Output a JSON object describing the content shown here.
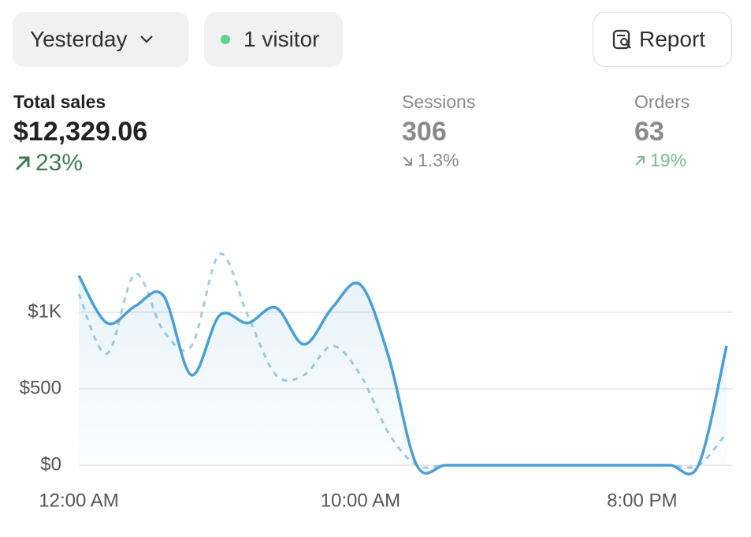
{
  "toolbar": {
    "date_range": "Yesterday",
    "visitors": "1 visitor",
    "report": "Report"
  },
  "metrics": [
    {
      "label": "Total sales",
      "value": "$12,329.06",
      "change": "23%"
    },
    {
      "label": "Sessions",
      "value": "306",
      "change": "1.3%"
    },
    {
      "label": "Orders",
      "value": "63",
      "change": "19%"
    }
  ],
  "chart_data": {
    "type": "line",
    "categories": [
      "12:00 AM",
      null,
      null,
      null,
      null,
      null,
      null,
      null,
      null,
      null,
      "10:00 AM",
      null,
      null,
      null,
      null,
      null,
      null,
      null,
      null,
      null,
      "8:00 PM",
      null,
      null,
      null
    ],
    "series": [
      {
        "color": "#4a9fd8",
        "dashed": false,
        "values": [
          1240,
          930,
          1040,
          1110,
          590,
          980,
          930,
          1030,
          790,
          1030,
          1180,
          710,
          0,
          0,
          0,
          0,
          0,
          0,
          0,
          0,
          0,
          0,
          0,
          780
        ]
      },
      {
        "color": "#a3cbe4",
        "dashed": true,
        "values": [
          1120,
          730,
          1250,
          880,
          780,
          1380,
          980,
          590,
          590,
          780,
          590,
          210,
          0,
          0,
          0,
          0,
          0,
          0,
          0,
          0,
          0,
          0,
          0,
          210
        ]
      }
    ],
    "ylim": [
      0,
      1000
    ],
    "yticks": [
      {
        "value": 0,
        "label": "$0"
      },
      {
        "value": 500,
        "label": "$500"
      },
      {
        "value": 1000,
        "label": "$1K"
      }
    ],
    "grid": true
  }
}
